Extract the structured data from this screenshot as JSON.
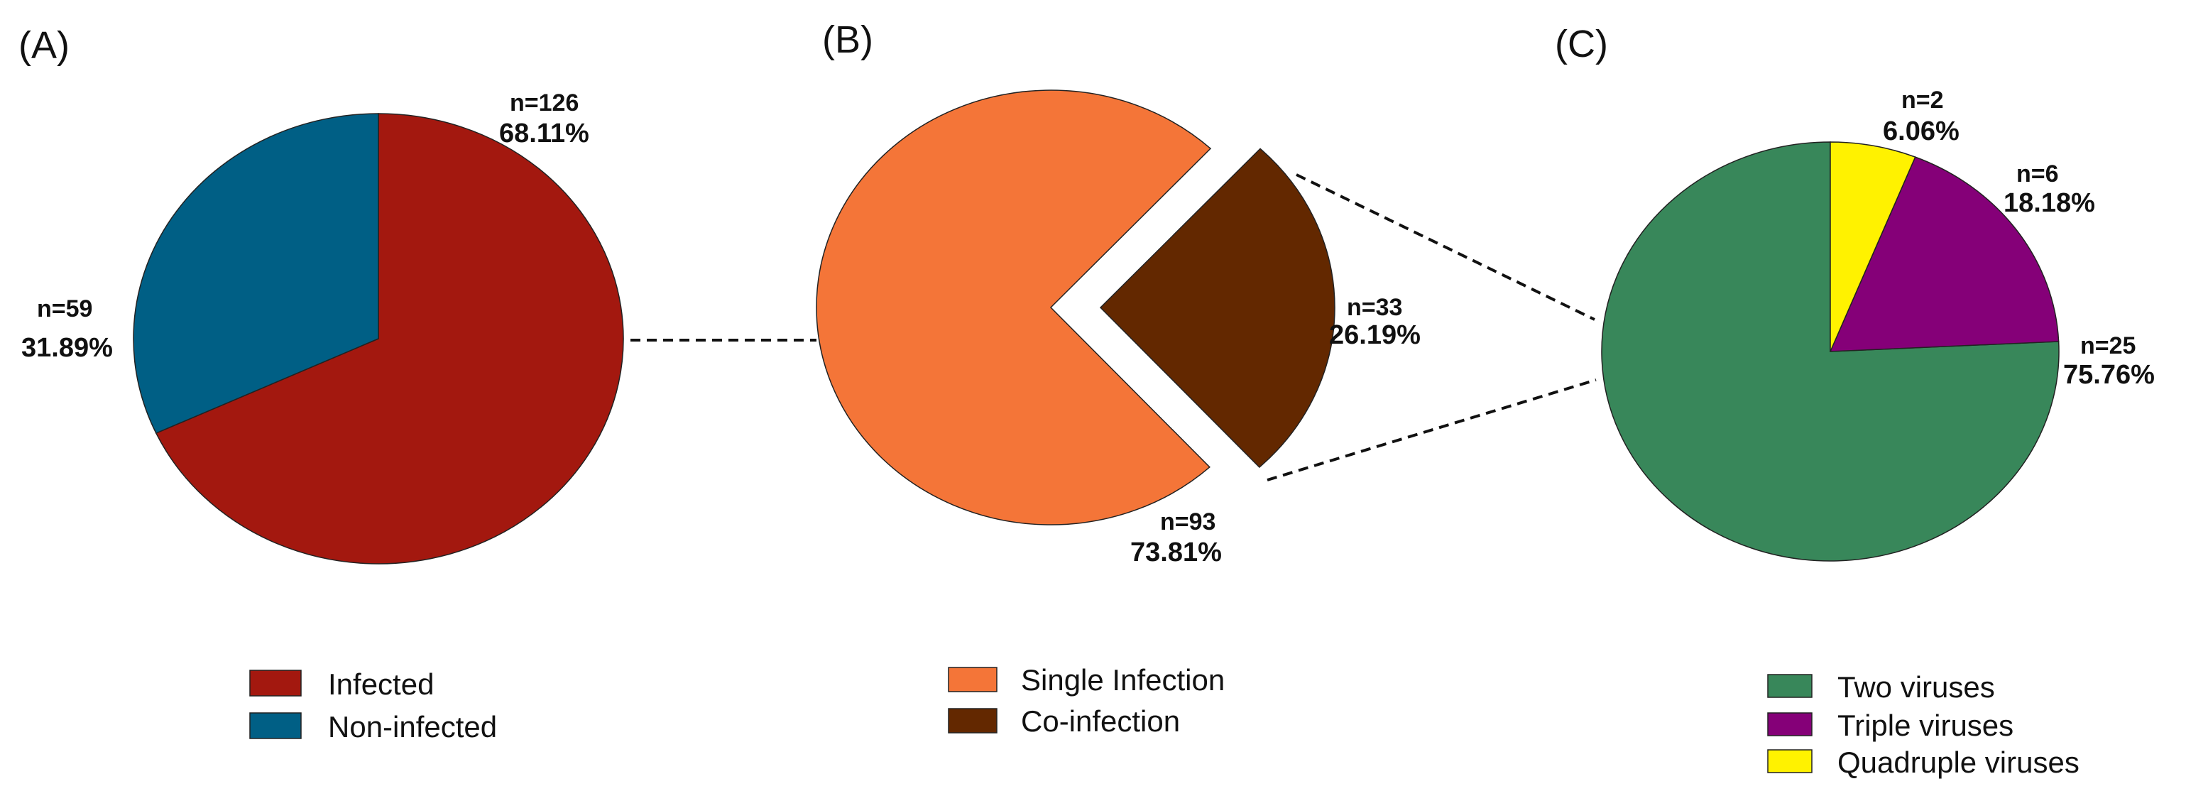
{
  "chart_data": [
    {
      "type": "pie",
      "panel_label": "(A)",
      "slices": [
        {
          "name": "Infected",
          "value": 126,
          "percent": 68.11,
          "n_label": "n=126",
          "pct_label": "68.11%",
          "color": "#A3180F"
        },
        {
          "name": "Non-infected",
          "value": 59,
          "percent": 31.89,
          "n_label": "n=59",
          "pct_label": "31.89%",
          "color": "#005F85"
        }
      ],
      "legend": [
        "Infected",
        "Non-infected"
      ],
      "legend_position": "bottom"
    },
    {
      "type": "pie",
      "panel_label": "(B)",
      "slices": [
        {
          "name": "Single Infection",
          "value": 93,
          "percent": 73.81,
          "n_label": "n=93",
          "pct_label": "73.81%",
          "color": "#F47538"
        },
        {
          "name": "Co-infection",
          "value": 33,
          "percent": 26.19,
          "n_label": "n=33",
          "pct_label": "26.19%",
          "color": "#632800",
          "exploded": true
        }
      ],
      "legend": [
        "Single Infection",
        "Co-infection"
      ],
      "legend_position": "bottom"
    },
    {
      "type": "pie",
      "panel_label": "(C)",
      "slices": [
        {
          "name": "Two viruses",
          "value": 25,
          "percent": 75.76,
          "n_label": "n=25",
          "pct_label": "75.76%",
          "color": "#38875A"
        },
        {
          "name": "Triple viruses",
          "value": 6,
          "percent": 18.18,
          "n_label": "n=6",
          "pct_label": "18.18%",
          "color": "#850078"
        },
        {
          "name": "Quadruple viruses",
          "value": 2,
          "percent": 6.06,
          "n_label": "n=2",
          "pct_label": "6.06%",
          "color": "#FFF200"
        }
      ],
      "legend": [
        "Two viruses",
        "Triple viruses",
        "Quadruple viruses"
      ],
      "legend_position": "bottom"
    }
  ]
}
